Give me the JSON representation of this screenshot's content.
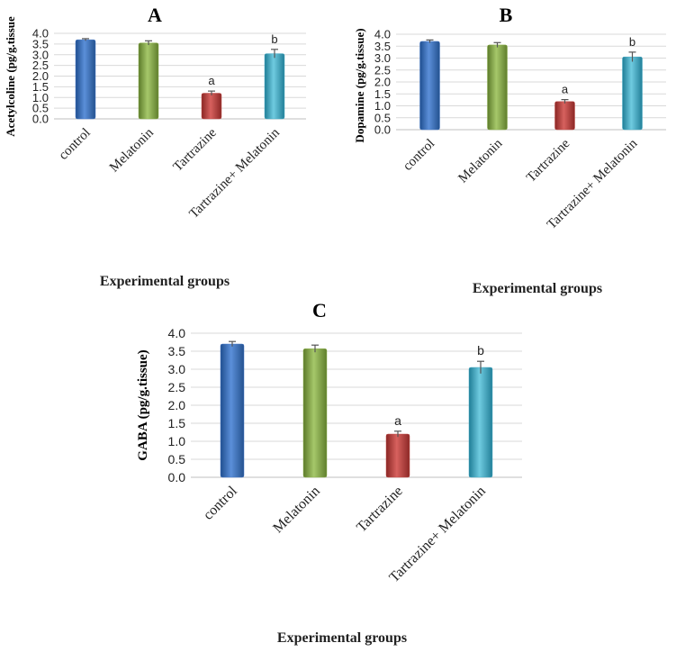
{
  "chart_data": [
    {
      "type": "bar",
      "panel": "A",
      "title": "",
      "ylabel": "Acetylcoline (pg/g.tissue",
      "xlabel": "Experimental groups",
      "ylim": [
        0,
        4.0
      ],
      "yticks": [
        "0.0",
        "0.5",
        "1.0",
        "1.5",
        "2.0",
        "2.5",
        "3.0",
        "3.5",
        "4.0"
      ],
      "categories": [
        "control",
        "Melatonin",
        "Tartrazine",
        "Tartrazine+ Melatonin"
      ],
      "values": [
        3.7,
        3.55,
        1.2,
        3.05
      ],
      "errors": [
        0.05,
        0.1,
        0.1,
        0.2
      ],
      "labels": [
        "",
        "",
        "a",
        "b"
      ],
      "colors": [
        "#4a7cc9",
        "#8db04e",
        "#c0504d",
        "#4bacc6"
      ],
      "grid": true
    },
    {
      "type": "bar",
      "panel": "B",
      "title": "",
      "ylabel": "Dopamine (pg/g.tissue)",
      "xlabel": "Experimental groups",
      "ylim": [
        0,
        4.0
      ],
      "yticks": [
        "0.0",
        "0.5",
        "1.0",
        "1.5",
        "2.0",
        "2.5",
        "3.0",
        "3.5",
        "4.0"
      ],
      "categories": [
        "control",
        "Melatonin",
        "Tartrazine",
        "Tartrazine+ Melatonin"
      ],
      "values": [
        3.7,
        3.55,
        1.18,
        3.05
      ],
      "errors": [
        0.06,
        0.1,
        0.08,
        0.2
      ],
      "labels": [
        "",
        "",
        "a",
        "b"
      ],
      "colors": [
        "#4a7cc9",
        "#8db04e",
        "#c0504d",
        "#4bacc6"
      ],
      "grid": true
    },
    {
      "type": "bar",
      "panel": "C",
      "title": "",
      "ylabel": "GABA (pg/g.tissue)",
      "xlabel": "Experimental groups",
      "ylim": [
        0,
        4.0
      ],
      "yticks": [
        "0.0",
        "0.5",
        "1.0",
        "1.5",
        "2.0",
        "2.5",
        "3.0",
        "3.5",
        "4.0"
      ],
      "categories": [
        "control",
        "Melatonin",
        "Tartrazine",
        "Tartrazine+ Melatonin"
      ],
      "values": [
        3.7,
        3.57,
        1.2,
        3.05
      ],
      "errors": [
        0.07,
        0.1,
        0.08,
        0.17
      ],
      "labels": [
        "",
        "",
        "a",
        "b"
      ],
      "colors": [
        "#4a7cc9",
        "#8db04e",
        "#c0504d",
        "#4bacc6"
      ],
      "grid": true
    }
  ]
}
